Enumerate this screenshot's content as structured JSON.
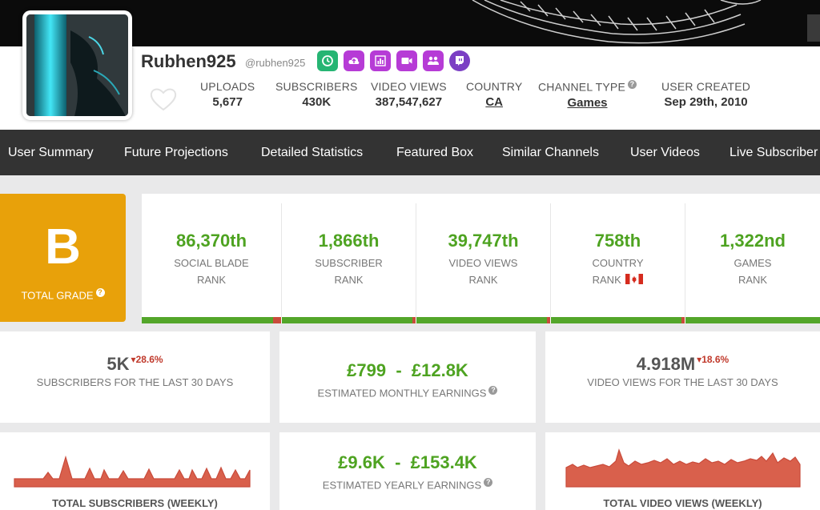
{
  "colors": {
    "accent_green": "#4ea321",
    "grade_orange": "#e8a10a",
    "nav_bg": "#333333",
    "decline_red": "#c0392b",
    "chart_fill": "#d9604c"
  },
  "channel": {
    "name": "Rubhen925",
    "handle": "@rubhen925",
    "social_icons": [
      "clock-icon",
      "upload-icon",
      "chart-icon",
      "video-icon",
      "group-icon",
      "twitch-icon"
    ]
  },
  "stats": {
    "uploads": {
      "label": "UPLOADS",
      "value": "5,677"
    },
    "subscribers": {
      "label": "SUBSCRIBERS",
      "value": "430K"
    },
    "views": {
      "label": "VIDEO VIEWS",
      "value": "387,547,627"
    },
    "country": {
      "label": "COUNTRY",
      "value": "CA"
    },
    "channel_type": {
      "label": "CHANNEL TYPE",
      "value": "Games"
    },
    "created": {
      "label": "USER CREATED",
      "value": "Sep 29th, 2010"
    }
  },
  "nav": [
    "User Summary",
    "Future Projections",
    "Detailed Statistics",
    "Featured Box",
    "Similar Channels",
    "User Videos",
    "Live Subscriber"
  ],
  "grade": {
    "letter": "B",
    "label": "TOTAL GRADE"
  },
  "ranks": [
    {
      "value": "86,370th",
      "line1": "SOCIAL BLADE",
      "line2": "RANK"
    },
    {
      "value": "1,866th",
      "line1": "SUBSCRIBER",
      "line2": "RANK"
    },
    {
      "value": "39,747th",
      "line1": "VIDEO VIEWS",
      "line2": "RANK"
    },
    {
      "value": "758th",
      "line1": "COUNTRY",
      "line2": "RANK"
    },
    {
      "value": "1,322nd",
      "line1": "GAMES",
      "line2": "RANK"
    }
  ],
  "summary": {
    "subs30": {
      "value": "5K",
      "delta": "28.6%",
      "label": "SUBSCRIBERS FOR THE LAST 30 DAYS"
    },
    "monthly": {
      "value": "£799  -  £12.8K",
      "label": "ESTIMATED MONTHLY EARNINGS"
    },
    "views30": {
      "value": "4.918M",
      "delta": "18.6%",
      "label": "VIDEO VIEWS FOR THE LAST 30 DAYS"
    },
    "yearly": {
      "value": "£9.6K  -  £153.4K",
      "label": "ESTIMATED YEARLY EARNINGS"
    },
    "subs_weekly_label": "TOTAL SUBSCRIBERS (WEEKLY)",
    "views_weekly_label": "TOTAL VIDEO VIEWS (WEEKLY)"
  }
}
